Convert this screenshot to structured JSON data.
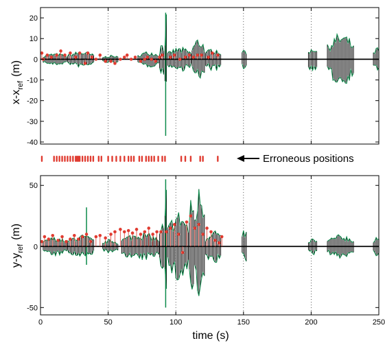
{
  "chart_data": [
    {
      "type": "line",
      "ylabel_main": "x-x",
      "ylabel_sub": "ref",
      "ylabel_unit": "(m)",
      "xlim": [
        0,
        250
      ],
      "ylim": [
        -41,
        25
      ],
      "xticks": [
        0,
        50,
        100,
        150,
        200,
        250
      ],
      "yticks": [
        20,
        10,
        0,
        -10,
        -20,
        -30,
        -40
      ],
      "grid": "dotted vertical lines at x = 50, 100, 150, 200",
      "reference_line": 0,
      "series": [
        {
          "color": "#0b8a4a",
          "envelope": [
            {
              "x0": 2,
              "x1": 20,
              "amp": 3
            },
            {
              "x0": 20,
              "x1": 40,
              "amp": 4
            },
            {
              "x0": 46,
              "x1": 58,
              "amp": 2
            },
            {
              "x0": 72,
              "x1": 88,
              "amp": 4
            },
            {
              "x0": 88,
              "x1": 92,
              "amp": 9
            },
            {
              "x0": 92,
              "x1": 94,
              "amp": 23
            },
            {
              "x0": 94,
              "x1": 112,
              "amp": 6
            },
            {
              "x0": 112,
              "x1": 122,
              "amp": 11
            },
            {
              "x0": 122,
              "x1": 134,
              "amp": 6
            },
            {
              "x0": 149,
              "x1": 153,
              "amp": 6
            },
            {
              "x0": 198,
              "x1": 205,
              "amp": 7
            },
            {
              "x0": 212,
              "x1": 232,
              "amp": 13
            },
            {
              "x0": 246,
              "x1": 251,
              "amp": 6
            }
          ],
          "spikes": [
            {
              "x": 92.5,
              "top": 22.5,
              "bottom": -37
            }
          ]
        }
      ],
      "error_points": [
        [
          1,
          3
        ],
        [
          2,
          0
        ],
        [
          5,
          2
        ],
        [
          8,
          1
        ],
        [
          12,
          2
        ],
        [
          15,
          4
        ],
        [
          18,
          2
        ],
        [
          22,
          3
        ],
        [
          26,
          1
        ],
        [
          29,
          3
        ],
        [
          33,
          -2
        ],
        [
          35,
          3
        ],
        [
          38,
          1
        ],
        [
          41,
          0
        ],
        [
          44,
          2
        ],
        [
          48,
          -1
        ],
        [
          52,
          -1
        ],
        [
          55,
          -2
        ],
        [
          59,
          0
        ],
        [
          62,
          1
        ],
        [
          64,
          2
        ],
        [
          67,
          0
        ],
        [
          70,
          1
        ],
        [
          74,
          -1
        ],
        [
          77,
          0
        ],
        [
          79,
          1
        ],
        [
          82,
          0
        ],
        [
          85,
          -1
        ],
        [
          88,
          1
        ],
        [
          90,
          2
        ],
        [
          96,
          1
        ],
        [
          99,
          2
        ],
        [
          103,
          0
        ],
        [
          107,
          1
        ],
        [
          110,
          2
        ],
        [
          113,
          1
        ],
        [
          116,
          2
        ],
        [
          119,
          2
        ],
        [
          124,
          1
        ],
        [
          127,
          3
        ],
        [
          131,
          2
        ]
      ]
    },
    {
      "type": "line",
      "ylabel_main": "y-y",
      "ylabel_sub": "ref",
      "ylabel_unit": "(m)",
      "xlabel": "time (s)",
      "xlim": [
        0,
        250
      ],
      "ylim": [
        -56,
        58
      ],
      "xticks": [
        0,
        50,
        100,
        150,
        200,
        250
      ],
      "xtick_labels": [
        "0",
        "50",
        "100",
        "150",
        "200",
        "250"
      ],
      "yticks": [
        50,
        0,
        -50
      ],
      "grid": "dotted vertical lines at x = 50, 100, 150, 200",
      "reference_line": 0,
      "series": [
        {
          "color": "#0b8a4a",
          "envelope": [
            {
              "x0": 2,
              "x1": 20,
              "amp": 8
            },
            {
              "x0": 20,
              "x1": 40,
              "amp": 10
            },
            {
              "x0": 46,
              "x1": 58,
              "amp": 6
            },
            {
              "x0": 60,
              "x1": 88,
              "amp": 12
            },
            {
              "x0": 88,
              "x1": 92,
              "amp": 20
            },
            {
              "x0": 92,
              "x1": 94,
              "amp": 55
            },
            {
              "x0": 94,
              "x1": 110,
              "amp": 30
            },
            {
              "x0": 110,
              "x1": 114,
              "amp": 45
            },
            {
              "x0": 114,
              "x1": 122,
              "amp": 52
            },
            {
              "x0": 122,
              "x1": 134,
              "amp": 15
            },
            {
              "x0": 149,
              "x1": 153,
              "amp": 15
            },
            {
              "x0": 198,
              "x1": 205,
              "amp": 7
            },
            {
              "x0": 212,
              "x1": 232,
              "amp": 10
            },
            {
              "x0": 246,
              "x1": 251,
              "amp": 8
            }
          ],
          "spikes": [
            {
              "x": 34,
              "top": 32,
              "bottom": -15
            },
            {
              "x": 92.5,
              "top": 55,
              "bottom": -50
            }
          ]
        }
      ],
      "error_points": [
        [
          1,
          4
        ],
        [
          3,
          8
        ],
        [
          6,
          6
        ],
        [
          9,
          9
        ],
        [
          13,
          5
        ],
        [
          16,
          8
        ],
        [
          19,
          4
        ],
        [
          22,
          6
        ],
        [
          25,
          9
        ],
        [
          28,
          6
        ],
        [
          31,
          8
        ],
        [
          34,
          10
        ],
        [
          37,
          4
        ],
        [
          41,
          8
        ],
        [
          44,
          9
        ],
        [
          48,
          7
        ],
        [
          52,
          10
        ],
        [
          55,
          12
        ],
        [
          59,
          14
        ],
        [
          62,
          12
        ],
        [
          65,
          13
        ],
        [
          68,
          11
        ],
        [
          71,
          14
        ],
        [
          74,
          10
        ],
        [
          77,
          12
        ],
        [
          80,
          15
        ],
        [
          83,
          10
        ],
        [
          86,
          12
        ],
        [
          89,
          12
        ],
        [
          93,
          12
        ],
        [
          96,
          15
        ],
        [
          99,
          18
        ],
        [
          102,
          10
        ],
        [
          105,
          -5
        ],
        [
          108,
          20
        ],
        [
          111,
          25
        ],
        [
          114,
          15
        ],
        [
          117,
          18
        ],
        [
          120,
          10
        ],
        [
          123,
          15
        ],
        [
          126,
          12
        ],
        [
          129,
          5
        ],
        [
          132,
          3
        ],
        [
          134,
          8
        ]
      ]
    }
  ],
  "erroneous_strip": {
    "xs": [
      1,
      10,
      12,
      14,
      16,
      18,
      20,
      22,
      24,
      26,
      27,
      28,
      29,
      31,
      33,
      35,
      37,
      39,
      43,
      45,
      50,
      53,
      56,
      59,
      62,
      65,
      67,
      69,
      73,
      75,
      78,
      80,
      82,
      84,
      87,
      90,
      92,
      104,
      107,
      111,
      118,
      120,
      131
    ],
    "annotation": "Erroneous positions"
  },
  "colors": {
    "signal": "#0b8a4a",
    "error": "#e03c31",
    "trace": "#000000",
    "axes": "#000000"
  }
}
